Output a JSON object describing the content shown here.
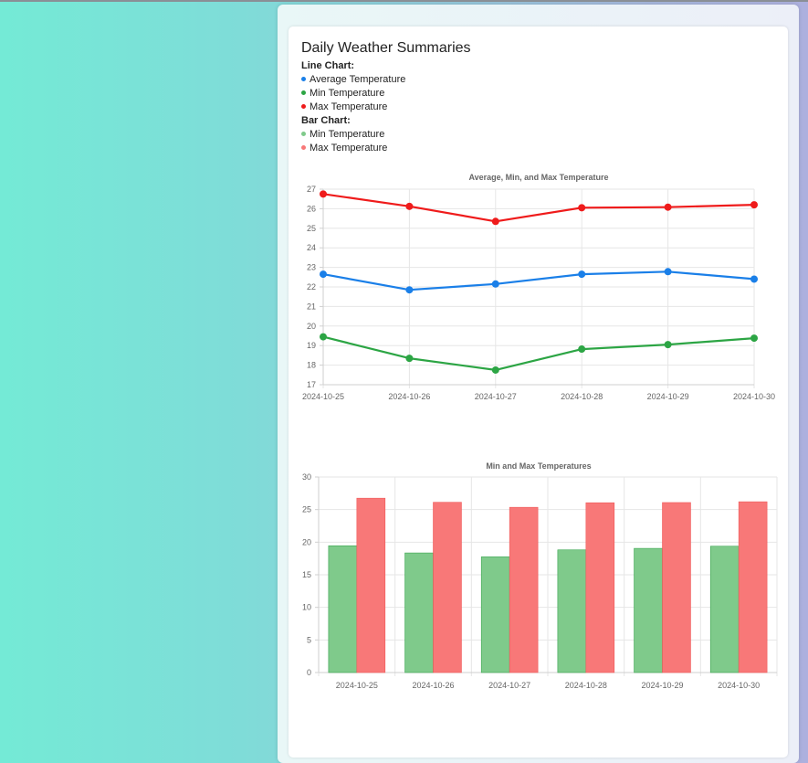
{
  "page": {
    "title": "Daily Weather Summaries",
    "line_legend_header": "Line Chart:",
    "bar_legend_header": "Bar Chart:",
    "line_legend": [
      {
        "label": "Average Temperature",
        "color": "#1a7fe8"
      },
      {
        "label": "Min Temperature",
        "color": "#2ca544"
      },
      {
        "label": "Max Temperature",
        "color": "#ef1b1b"
      }
    ],
    "bar_legend": [
      {
        "label": "Min Temperature",
        "color": "#7fca8b"
      },
      {
        "label": "Max Temperature",
        "color": "#f87878"
      }
    ]
  },
  "chart_data": [
    {
      "type": "line",
      "title": "Average, Min, and Max Temperature",
      "x": [
        "2024-10-25",
        "2024-10-26",
        "2024-10-27",
        "2024-10-28",
        "2024-10-29",
        "2024-10-30"
      ],
      "ylim": [
        17,
        27
      ],
      "yticks": [
        17,
        18,
        19,
        20,
        21,
        22,
        23,
        24,
        25,
        26,
        27
      ],
      "grid": true,
      "series": [
        {
          "name": "Average Temperature",
          "color": "#1a7fe8",
          "values": [
            22.65,
            21.85,
            22.15,
            22.65,
            22.78,
            22.4
          ]
        },
        {
          "name": "Min Temperature",
          "color": "#2ca544",
          "values": [
            19.45,
            18.35,
            17.75,
            18.82,
            19.05,
            19.38
          ]
        },
        {
          "name": "Max Temperature",
          "color": "#ef1b1b",
          "values": [
            26.75,
            26.12,
            25.35,
            26.05,
            26.08,
            26.2
          ]
        }
      ]
    },
    {
      "type": "bar",
      "title": "Min and Max Temperatures",
      "categories": [
        "2024-10-25",
        "2024-10-26",
        "2024-10-27",
        "2024-10-28",
        "2024-10-29",
        "2024-10-30"
      ],
      "ylim": [
        0,
        30
      ],
      "yticks": [
        0,
        5,
        10,
        15,
        20,
        25,
        30
      ],
      "grid": true,
      "series": [
        {
          "name": "Min Temperature",
          "color": "#7fca8b",
          "values": [
            19.45,
            18.35,
            17.75,
            18.82,
            19.05,
            19.38
          ]
        },
        {
          "name": "Max Temperature",
          "color": "#f87878",
          "values": [
            26.75,
            26.12,
            25.35,
            26.05,
            26.08,
            26.2
          ]
        }
      ]
    }
  ]
}
